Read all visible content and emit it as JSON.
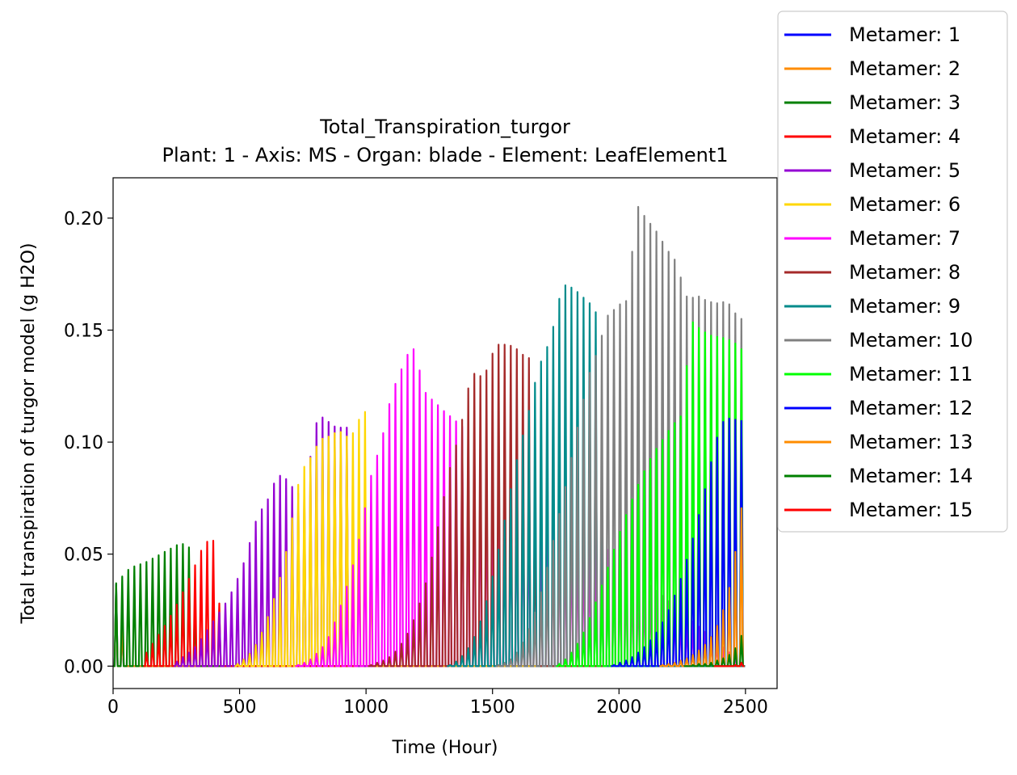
{
  "chart_data": {
    "type": "line",
    "title": "Total_Transpiration_turgor",
    "subtitle": "Plant: 1 - Axis: MS - Organ: blade - Element: LeafElement1",
    "xlabel": "Time (Hour)",
    "ylabel": "Total transpiration of turgor model (g H2O)",
    "xlim": [
      0,
      2625
    ],
    "ylim": [
      -0.01,
      0.218
    ],
    "x_ticks": [
      0,
      500,
      1000,
      1500,
      2000,
      2500
    ],
    "x_tick_labels": [
      "0",
      "500",
      "1000",
      "1500",
      "2000",
      "2500"
    ],
    "y_ticks": [
      0.0,
      0.05,
      0.1,
      0.15,
      0.2
    ],
    "y_tick_labels": [
      "0.00",
      "0.05",
      "0.10",
      "0.15",
      "0.20"
    ],
    "grid": false,
    "legend_position": "outside top-right",
    "series": [
      {
        "name": "Metamer: 1",
        "color": "#0000ff",
        "x": [
          0,
          24,
          48,
          72,
          2500
        ],
        "y": [
          0.036,
          0.037,
          0.0,
          0.0,
          0.0
        ]
      },
      {
        "name": "Metamer: 2",
        "color": "#ff8c00",
        "x": [
          0,
          24,
          48,
          72,
          2500
        ],
        "y": [
          0.035,
          0.036,
          0.0,
          0.0,
          0.0
        ]
      },
      {
        "name": "Metamer: 3",
        "color": "#008000",
        "x": [
          0,
          24,
          48,
          72,
          96,
          120,
          144,
          168,
          192,
          216,
          240,
          264,
          288,
          312,
          336,
          2500
        ],
        "y": [
          0.036,
          0.038,
          0.042,
          0.044,
          0.045,
          0.046,
          0.047,
          0.049,
          0.05,
          0.052,
          0.053,
          0.055,
          0.054,
          0.052,
          0.0,
          0.0
        ]
      },
      {
        "name": "Metamer: 4",
        "color": "#ff0000",
        "x": [
          120,
          144,
          168,
          192,
          216,
          240,
          264,
          288,
          312,
          336,
          360,
          384,
          408,
          432,
          2500
        ],
        "y": [
          0.004,
          0.008,
          0.012,
          0.016,
          0.02,
          0.025,
          0.03,
          0.036,
          0.042,
          0.048,
          0.055,
          0.056,
          0.056,
          0.0,
          0.0
        ]
      },
      {
        "name": "Metamer: 5",
        "color": "#9400d3",
        "x": [
          240,
          264,
          288,
          312,
          336,
          360,
          384,
          408,
          432,
          456,
          480,
          504,
          528,
          552,
          576,
          600,
          624,
          648,
          672,
          696,
          720,
          744,
          768,
          792,
          816,
          840,
          864,
          888,
          912,
          936,
          960,
          2500
        ],
        "y": [
          0.001,
          0.003,
          0.005,
          0.007,
          0.01,
          0.014,
          0.018,
          0.022,
          0.026,
          0.03,
          0.036,
          0.042,
          0.05,
          0.06,
          0.069,
          0.071,
          0.078,
          0.085,
          0.085,
          0.082,
          0.078,
          0.076,
          0.082,
          0.105,
          0.112,
          0.11,
          0.108,
          0.106,
          0.107,
          0.106,
          0.0,
          0.0
        ]
      },
      {
        "name": "Metamer: 6",
        "color": "#ffd700",
        "x": [
          480,
          504,
          528,
          552,
          576,
          600,
          624,
          648,
          672,
          696,
          720,
          744,
          768,
          792,
          816,
          840,
          864,
          888,
          912,
          936,
          960,
          984,
          1008,
          1032,
          2500
        ],
        "y": [
          0.0,
          0.002,
          0.004,
          0.007,
          0.012,
          0.018,
          0.026,
          0.034,
          0.045,
          0.057,
          0.075,
          0.087,
          0.091,
          0.095,
          0.101,
          0.102,
          0.103,
          0.105,
          0.104,
          0.101,
          0.107,
          0.113,
          0.114,
          0.0,
          0.0
        ]
      },
      {
        "name": "Metamer: 7",
        "color": "#ff00ff",
        "x": [
          720,
          744,
          768,
          792,
          816,
          840,
          864,
          888,
          912,
          936,
          960,
          984,
          1008,
          1032,
          1056,
          1080,
          1104,
          1128,
          1152,
          1176,
          1200,
          1224,
          1248,
          1272,
          1296,
          2500
        ],
        "y": [
          0.0,
          0.001,
          0.002,
          0.004,
          0.007,
          0.01,
          0.016,
          0.023,
          0.031,
          0.04,
          0.05,
          0.063,
          0.078,
          0.092,
          0.096,
          0.112,
          0.122,
          0.13,
          0.135,
          0.143,
          0.14,
          0.124,
          0.12,
          0.118,
          0.115,
          0.0
        ]
      },
      {
        "name": "Metamer: 8",
        "color": "#a52a2a",
        "x": [
          1008,
          1032,
          1056,
          1080,
          1104,
          1128,
          1152,
          1176,
          1200,
          1224,
          1248,
          1272,
          1296,
          1320,
          1344,
          1368,
          1392,
          1416,
          1440,
          1464,
          1488,
          1512,
          1536,
          1560,
          1584,
          1608,
          1632,
          1656,
          1680,
          2500
        ],
        "y": [
          0.0,
          0.001,
          0.002,
          0.003,
          0.005,
          0.008,
          0.012,
          0.017,
          0.024,
          0.032,
          0.042,
          0.055,
          0.069,
          0.082,
          0.095,
          0.102,
          0.118,
          0.13,
          0.131,
          0.128,
          0.136,
          0.143,
          0.144,
          0.143,
          0.143,
          0.14,
          0.138,
          0.137,
          0.0,
          0.0
        ]
      },
      {
        "name": "Metamer: 9",
        "color": "#008b8b",
        "x": [
          1320,
          1344,
          1368,
          1392,
          1416,
          1440,
          1464,
          1488,
          1512,
          1536,
          1560,
          1584,
          1608,
          1632,
          1656,
          1680,
          1704,
          1728,
          1752,
          1776,
          1800,
          1824,
          1848,
          1872,
          1896,
          1920,
          1944,
          2500
        ],
        "y": [
          0.0,
          0.001,
          0.003,
          0.006,
          0.01,
          0.016,
          0.024,
          0.034,
          0.046,
          0.058,
          0.072,
          0.086,
          0.098,
          0.108,
          0.12,
          0.133,
          0.139,
          0.146,
          0.157,
          0.171,
          0.169,
          0.169,
          0.165,
          0.164,
          0.16,
          0.156,
          0.0,
          0.0
        ]
      },
      {
        "name": "Metamer: 10",
        "color": "#808080",
        "x": [
          1512,
          1536,
          1560,
          1584,
          1608,
          1632,
          1656,
          1680,
          1704,
          1728,
          1752,
          1776,
          1800,
          1824,
          1848,
          1872,
          1896,
          1920,
          1944,
          1968,
          1992,
          2016,
          2040,
          2064,
          2088,
          2112,
          2136,
          2160,
          2184,
          2208,
          2232,
          2256,
          2280,
          2304,
          2328,
          2352,
          2376,
          2400,
          2424,
          2448,
          2472,
          2496
        ],
        "y": [
          0.0,
          0.001,
          0.002,
          0.004,
          0.008,
          0.013,
          0.02,
          0.028,
          0.038,
          0.05,
          0.062,
          0.074,
          0.086,
          0.1,
          0.113,
          0.125,
          0.137,
          0.14,
          0.155,
          0.158,
          0.16,
          0.163,
          0.163,
          0.207,
          0.203,
          0.199,
          0.196,
          0.192,
          0.187,
          0.183,
          0.18,
          0.167,
          0.163,
          0.166,
          0.164,
          0.163,
          0.162,
          0.162,
          0.163,
          0.16,
          0.155,
          0.155
        ]
      },
      {
        "name": "Metamer: 11",
        "color": "#00ff00",
        "x": [
          1752,
          1776,
          1800,
          1824,
          1848,
          1872,
          1896,
          1920,
          1944,
          1968,
          1992,
          2016,
          2040,
          2064,
          2088,
          2112,
          2136,
          2160,
          2184,
          2208,
          2232,
          2256,
          2280,
          2304,
          2328,
          2352,
          2376,
          2400,
          2424,
          2448,
          2472,
          2496
        ],
        "y": [
          0.0,
          0.002,
          0.004,
          0.008,
          0.012,
          0.018,
          0.025,
          0.032,
          0.04,
          0.048,
          0.056,
          0.064,
          0.071,
          0.078,
          0.084,
          0.09,
          0.095,
          0.099,
          0.103,
          0.107,
          0.11,
          0.113,
          0.155,
          0.152,
          0.15,
          0.148,
          0.147,
          0.147,
          0.146,
          0.145,
          0.143,
          0.14
        ]
      },
      {
        "name": "Metamer: 12",
        "color": "#0000ff",
        "x": [
          1968,
          1992,
          2016,
          2040,
          2064,
          2088,
          2112,
          2136,
          2160,
          2184,
          2208,
          2232,
          2256,
          2280,
          2304,
          2328,
          2352,
          2376,
          2400,
          2424,
          2448,
          2472,
          2496
        ],
        "y": [
          0.0,
          0.001,
          0.002,
          0.003,
          0.005,
          0.007,
          0.01,
          0.013,
          0.017,
          0.022,
          0.028,
          0.035,
          0.043,
          0.052,
          0.062,
          0.073,
          0.085,
          0.097,
          0.107,
          0.111,
          0.11,
          0.11,
          0.109
        ]
      },
      {
        "name": "Metamer: 13",
        "color": "#ff8c00",
        "x": [
          2160,
          2184,
          2208,
          2232,
          2256,
          2280,
          2304,
          2328,
          2352,
          2376,
          2400,
          2424,
          2448,
          2472,
          2496
        ],
        "y": [
          0.0,
          0.001,
          0.001,
          0.002,
          0.003,
          0.004,
          0.006,
          0.008,
          0.011,
          0.015,
          0.021,
          0.029,
          0.041,
          0.061,
          0.08
        ]
      },
      {
        "name": "Metamer: 14",
        "color": "#008000",
        "x": [
          2256,
          2280,
          2304,
          2328,
          2352,
          2376,
          2400,
          2424,
          2448,
          2472,
          2496
        ],
        "y": [
          0.0,
          0.0,
          0.001,
          0.001,
          0.001,
          0.002,
          0.003,
          0.004,
          0.006,
          0.01,
          0.017
        ]
      },
      {
        "name": "Metamer: 15",
        "color": "#ff0000",
        "x": [
          2376,
          2400,
          2424,
          2448,
          2472,
          2496
        ],
        "y": [
          0.0,
          0.0,
          0.0,
          0.0,
          0.001,
          0.002
        ]
      }
    ]
  }
}
